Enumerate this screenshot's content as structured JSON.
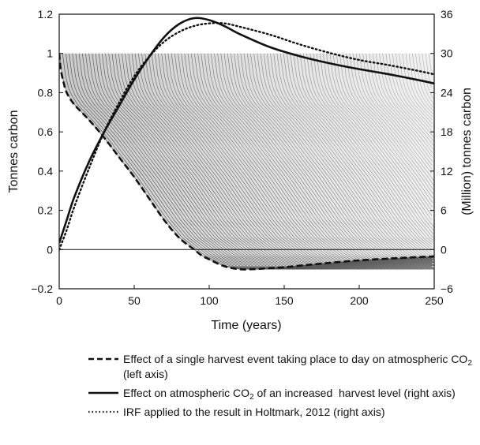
{
  "chart_data": {
    "type": "line",
    "xlabel": "Time (years)",
    "ylabel_left": "Tonnes  carbon",
    "ylabel_right": "(Million) tonnes carbon",
    "xlim": [
      0,
      250
    ],
    "ylim_left": [
      -0.2,
      1.2
    ],
    "ylim_right": [
      -6,
      36
    ],
    "x_ticks": [
      "0",
      "50",
      "100",
      "150",
      "200",
      "250"
    ],
    "y_left_ticks": [
      "−0.2",
      "0",
      "0.2",
      "0.4",
      "0.6",
      "0.8",
      "1",
      "1.2"
    ],
    "y_right_ticks": [
      "−6",
      "0",
      "6",
      "12",
      "18",
      "24",
      "30",
      "36"
    ],
    "series": [
      {
        "style": "dashed",
        "axis": "left",
        "x": [
          0,
          1,
          3,
          5,
          10,
          20,
          30,
          40,
          50,
          60,
          70,
          80,
          90,
          95,
          100,
          110,
          120,
          130,
          140,
          150,
          170,
          200,
          230,
          250
        ],
        "y": [
          1.0,
          0.92,
          0.85,
          0.8,
          0.74,
          0.66,
          0.57,
          0.47,
          0.37,
          0.26,
          0.15,
          0.06,
          0.0,
          -0.03,
          -0.05,
          -0.085,
          -0.1,
          -0.1,
          -0.095,
          -0.09,
          -0.075,
          -0.055,
          -0.042,
          -0.035
        ]
      },
      {
        "style": "solid",
        "axis": "right",
        "x": [
          0,
          5,
          10,
          20,
          30,
          40,
          50,
          60,
          70,
          80,
          90,
          100,
          110,
          120,
          140,
          160,
          180,
          200,
          220,
          240,
          250
        ],
        "y": [
          1,
          4.5,
          8,
          13.5,
          18,
          22,
          26,
          29.5,
          32.5,
          34.5,
          35.4,
          35.1,
          34.2,
          33,
          31,
          29.6,
          28.5,
          27.6,
          26.8,
          25.9,
          25.4
        ]
      },
      {
        "style": "dotted",
        "axis": "right",
        "x": [
          0,
          5,
          10,
          20,
          30,
          40,
          50,
          60,
          70,
          80,
          90,
          100,
          110,
          120,
          140,
          160,
          180,
          200,
          220,
          240,
          250
        ],
        "y": [
          0,
          3,
          6.5,
          12.5,
          18,
          22.5,
          26.5,
          29.5,
          31.8,
          33.3,
          34.2,
          34.6,
          34.6,
          34.1,
          32.9,
          31.4,
          30.1,
          29,
          28.2,
          27.3,
          26.8
        ]
      }
    ],
    "legend": [
      {
        "style": "dashed",
        "text": "Effect of a single harvest event taking place to day on atmospheric CO",
        "sub": "2",
        "suffix": " (left axis)"
      },
      {
        "style": "solid",
        "text": "Effect on atmospheric CO",
        "sub": "2",
        "suffix": " of an increased  harvest level (right axis)"
      },
      {
        "style": "dotted",
        "text": "IRF applied to the result in Holtmark, 2012 (right axis)",
        "sub": "",
        "suffix": ""
      }
    ],
    "background_band": {
      "description_free": true,
      "y_top": 1.0,
      "y_bottom": -0.1,
      "color": "#8a8a8a"
    }
  }
}
